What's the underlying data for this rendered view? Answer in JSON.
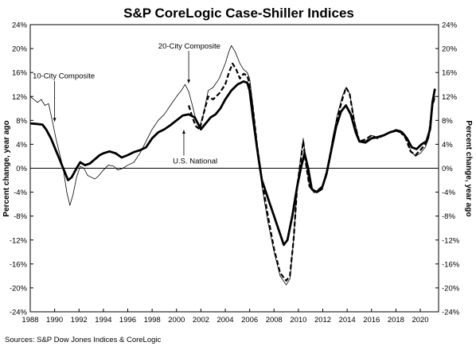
{
  "chart_data": {
    "type": "line",
    "title": "S&P CoreLogic Case-Shiller Indices",
    "ylabel_left": "Percent change, year ago",
    "ylabel_right": "Percent change, year ago",
    "source": "Sources:  S&P Dow Jones Indices & CoreLogic",
    "xlim": [
      1988,
      2021.5
    ],
    "ylim": [
      -24,
      24
    ],
    "x_ticks": [
      1988,
      1990,
      1992,
      1994,
      1996,
      1998,
      2000,
      2002,
      2004,
      2006,
      2008,
      2010,
      2012,
      2014,
      2016,
      2018,
      2020
    ],
    "y_ticks": [
      {
        "value": 24,
        "label": "24%"
      },
      {
        "value": 20,
        "label": "20%"
      },
      {
        "value": 16,
        "label": "16%"
      },
      {
        "value": 12,
        "label": "12%"
      },
      {
        "value": 8,
        "label": "8%"
      },
      {
        "value": 4,
        "label": "4%"
      },
      {
        "value": 0,
        "label": "0%"
      },
      {
        "value": -4,
        "label": "-4%"
      },
      {
        "value": -8,
        "label": "-8%"
      },
      {
        "value": -12,
        "label": "-12%"
      },
      {
        "value": -16,
        "label": "-16%"
      },
      {
        "value": -20,
        "label": "-20%"
      },
      {
        "value": -24,
        "label": "-24%"
      }
    ],
    "grid": false,
    "legend": "none",
    "series": [
      {
        "name": "10-City Composite",
        "style": "thin",
        "color": "#000000",
        "points": [
          [
            1988.0,
            12
          ],
          [
            1988.3,
            11.5
          ],
          [
            1988.6,
            11
          ],
          [
            1988.9,
            11.5
          ],
          [
            1989.2,
            10.5
          ],
          [
            1989.5,
            10.8
          ],
          [
            1989.8,
            8
          ],
          [
            1990.1,
            5
          ],
          [
            1990.4,
            2.5
          ],
          [
            1990.7,
            0
          ],
          [
            1991.0,
            -4
          ],
          [
            1991.25,
            -6.2
          ],
          [
            1991.5,
            -4.5
          ],
          [
            1991.8,
            -1.5
          ],
          [
            1992.1,
            0.3
          ],
          [
            1992.4,
            0
          ],
          [
            1992.7,
            -1.2
          ],
          [
            1993.0,
            -1.5
          ],
          [
            1993.3,
            -1.8
          ],
          [
            1993.6,
            -1.3
          ],
          [
            1994.0,
            -0.3
          ],
          [
            1994.4,
            0.5
          ],
          [
            1994.8,
            0.4
          ],
          [
            1995.2,
            -0.3
          ],
          [
            1995.6,
            0
          ],
          [
            1996.0,
            0.5
          ],
          [
            1996.5,
            1
          ],
          [
            1997.0,
            2.5
          ],
          [
            1997.5,
            4.5
          ],
          [
            1998.0,
            6.5
          ],
          [
            1998.5,
            8
          ],
          [
            1999.0,
            9
          ],
          [
            1999.5,
            10.5
          ],
          [
            2000.0,
            12
          ],
          [
            2000.4,
            13
          ],
          [
            2000.7,
            14
          ],
          [
            2001.0,
            12.8
          ],
          [
            2001.3,
            10.5
          ],
          [
            2001.6,
            8
          ],
          [
            2001.9,
            7
          ],
          [
            2002.2,
            9
          ],
          [
            2002.6,
            13
          ],
          [
            2003.0,
            13.5
          ],
          [
            2003.5,
            15
          ],
          [
            2004.0,
            17.5
          ],
          [
            2004.3,
            19.5
          ],
          [
            2004.5,
            20.5
          ],
          [
            2004.8,
            19.5
          ],
          [
            2005.2,
            17.5
          ],
          [
            2005.5,
            16.5
          ],
          [
            2005.8,
            16
          ],
          [
            2006.0,
            15
          ],
          [
            2006.3,
            10
          ],
          [
            2006.6,
            4
          ],
          [
            2007.0,
            -3
          ],
          [
            2007.5,
            -9
          ],
          [
            2008.0,
            -14
          ],
          [
            2008.5,
            -18
          ],
          [
            2009.0,
            -19.5
          ],
          [
            2009.3,
            -18.5
          ],
          [
            2009.6,
            -12
          ],
          [
            2009.9,
            -3
          ],
          [
            2010.2,
            2
          ],
          [
            2010.4,
            5
          ],
          [
            2010.6,
            1.5
          ],
          [
            2010.9,
            -3
          ],
          [
            2011.3,
            -4
          ],
          [
            2011.7,
            -3.5
          ],
          [
            2012.0,
            -3
          ],
          [
            2012.4,
            0
          ],
          [
            2012.8,
            5
          ],
          [
            2013.2,
            9
          ],
          [
            2013.6,
            12
          ],
          [
            2013.9,
            13.5
          ],
          [
            2014.2,
            12.5
          ],
          [
            2014.6,
            8
          ],
          [
            2015.0,
            4.5
          ],
          [
            2015.5,
            4.5
          ],
          [
            2016.0,
            5.5
          ],
          [
            2016.5,
            5
          ],
          [
            2017.0,
            5.5
          ],
          [
            2017.5,
            6
          ],
          [
            2018.0,
            6.5
          ],
          [
            2018.4,
            6.3
          ],
          [
            2018.8,
            5.5
          ],
          [
            2019.2,
            3
          ],
          [
            2019.6,
            2
          ],
          [
            2020.0,
            2.5
          ],
          [
            2020.4,
            3.5
          ],
          [
            2020.7,
            5
          ],
          [
            2021.0,
            10.5
          ],
          [
            2021.2,
            12
          ]
        ]
      },
      {
        "name": "20-City Composite",
        "style": "dashed",
        "color": "#000000",
        "points": [
          [
            2001.0,
            10.5
          ],
          [
            2001.3,
            8.5
          ],
          [
            2001.6,
            7
          ],
          [
            2001.9,
            6.5
          ],
          [
            2002.2,
            9
          ],
          [
            2002.6,
            12
          ],
          [
            2003.0,
            11.5
          ],
          [
            2003.5,
            12.5
          ],
          [
            2004.0,
            14
          ],
          [
            2004.3,
            16
          ],
          [
            2004.6,
            17.5
          ],
          [
            2004.9,
            16.5
          ],
          [
            2005.2,
            15
          ],
          [
            2005.5,
            15.8
          ],
          [
            2005.8,
            15.5
          ],
          [
            2006.0,
            14
          ],
          [
            2006.3,
            9.5
          ],
          [
            2006.6,
            4
          ],
          [
            2007.0,
            -2
          ],
          [
            2007.5,
            -8
          ],
          [
            2008.0,
            -13.5
          ],
          [
            2008.5,
            -17.5
          ],
          [
            2009.0,
            -18.8
          ],
          [
            2009.3,
            -18
          ],
          [
            2009.6,
            -12
          ],
          [
            2009.9,
            -3
          ],
          [
            2010.2,
            1.5
          ],
          [
            2010.4,
            4.5
          ],
          [
            2010.6,
            1
          ],
          [
            2010.9,
            -3
          ],
          [
            2011.3,
            -4
          ],
          [
            2011.7,
            -3.5
          ],
          [
            2012.0,
            -3
          ],
          [
            2012.4,
            0
          ],
          [
            2012.8,
            4.5
          ],
          [
            2013.2,
            8.5
          ],
          [
            2013.6,
            11.5
          ],
          [
            2013.9,
            13.5
          ],
          [
            2014.2,
            12.5
          ],
          [
            2014.6,
            7.5
          ],
          [
            2015.0,
            4.5
          ],
          [
            2015.5,
            4.8
          ],
          [
            2016.0,
            5.5
          ],
          [
            2016.5,
            5
          ],
          [
            2017.0,
            5.5
          ],
          [
            2017.5,
            6
          ],
          [
            2018.0,
            6.3
          ],
          [
            2018.4,
            6
          ],
          [
            2018.8,
            5
          ],
          [
            2019.2,
            2.8
          ],
          [
            2019.6,
            2.2
          ],
          [
            2020.0,
            3
          ],
          [
            2020.4,
            4
          ],
          [
            2020.7,
            5.5
          ],
          [
            2021.0,
            10.5
          ],
          [
            2021.2,
            12
          ]
        ]
      },
      {
        "name": "U.S. National",
        "style": "thick",
        "color": "#000000",
        "points": [
          [
            1988.0,
            7.5
          ],
          [
            1988.5,
            7.4
          ],
          [
            1989.0,
            7.3
          ],
          [
            1989.3,
            6.5
          ],
          [
            1989.7,
            5
          ],
          [
            1990.0,
            3.5
          ],
          [
            1990.4,
            1.5
          ],
          [
            1990.8,
            -0.5
          ],
          [
            1991.1,
            -2
          ],
          [
            1991.4,
            -1.5
          ],
          [
            1991.8,
            0
          ],
          [
            1992.1,
            1
          ],
          [
            1992.5,
            0.5
          ],
          [
            1992.9,
            0.8
          ],
          [
            1993.3,
            1.5
          ],
          [
            1993.7,
            2.2
          ],
          [
            1994.0,
            2.5
          ],
          [
            1994.5,
            2.8
          ],
          [
            1995.0,
            2.5
          ],
          [
            1995.5,
            1.8
          ],
          [
            1996.0,
            2.2
          ],
          [
            1996.5,
            2.7
          ],
          [
            1997.0,
            3
          ],
          [
            1997.5,
            3.5
          ],
          [
            1998.0,
            5
          ],
          [
            1998.5,
            6
          ],
          [
            1999.0,
            6.5
          ],
          [
            1999.5,
            7.2
          ],
          [
            2000.0,
            8
          ],
          [
            2000.5,
            8.8
          ],
          [
            2001.0,
            9
          ],
          [
            2001.5,
            8.5
          ],
          [
            2002.0,
            6.5
          ],
          [
            2002.4,
            7.5
          ],
          [
            2002.8,
            8.5
          ],
          [
            2003.2,
            9
          ],
          [
            2003.6,
            10
          ],
          [
            2004.0,
            11.5
          ],
          [
            2004.5,
            13
          ],
          [
            2005.0,
            14
          ],
          [
            2005.5,
            14.5
          ],
          [
            2005.8,
            14.3
          ],
          [
            2006.0,
            13
          ],
          [
            2006.3,
            8
          ],
          [
            2006.7,
            2
          ],
          [
            2007.0,
            -2
          ],
          [
            2007.5,
            -5
          ],
          [
            2008.0,
            -8
          ],
          [
            2008.5,
            -11
          ],
          [
            2008.8,
            -12.8
          ],
          [
            2009.1,
            -12
          ],
          [
            2009.5,
            -8
          ],
          [
            2009.9,
            -3
          ],
          [
            2010.2,
            0
          ],
          [
            2010.5,
            2.5
          ],
          [
            2010.8,
            0
          ],
          [
            2011.1,
            -3.5
          ],
          [
            2011.5,
            -4
          ],
          [
            2011.9,
            -3.5
          ],
          [
            2012.3,
            -1
          ],
          [
            2012.7,
            3
          ],
          [
            2013.1,
            7
          ],
          [
            2013.5,
            9.5
          ],
          [
            2013.9,
            10.5
          ],
          [
            2014.3,
            9
          ],
          [
            2014.7,
            6
          ],
          [
            2015.0,
            4.5
          ],
          [
            2015.5,
            4.3
          ],
          [
            2016.0,
            5
          ],
          [
            2016.5,
            5.2
          ],
          [
            2017.0,
            5.5
          ],
          [
            2017.5,
            6
          ],
          [
            2018.0,
            6.3
          ],
          [
            2018.5,
            6
          ],
          [
            2018.9,
            5
          ],
          [
            2019.3,
            3.5
          ],
          [
            2019.7,
            3.2
          ],
          [
            2020.1,
            4
          ],
          [
            2020.5,
            4.5
          ],
          [
            2020.8,
            6.5
          ],
          [
            2021.0,
            11
          ],
          [
            2021.2,
            13.3
          ]
        ]
      }
    ],
    "annotations": [
      {
        "text": "10-City Composite",
        "x": 1988.2,
        "y": 15,
        "arrow_to": [
          1990.0,
          7.8
        ]
      },
      {
        "text": "20-City Composite",
        "x": 1998.5,
        "y": 20,
        "arrow_to": [
          2001.0,
          14.2
        ]
      },
      {
        "text": "U.S. National",
        "x": 1999.7,
        "y": 0.8,
        "arrow_to": [
          2000.6,
          6.4
        ]
      }
    ]
  }
}
